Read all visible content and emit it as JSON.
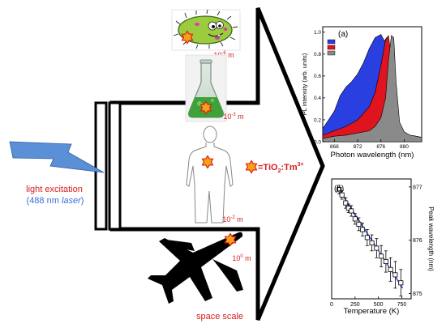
{
  "light": {
    "line1": "light excitation",
    "line2_open": "(488 nm ",
    "line2_laser": "laser",
    "line2_close": ")"
  },
  "scales": [
    {
      "base": "10",
      "exp": "-6",
      "unit": " m"
    },
    {
      "base": "10",
      "exp": "-3",
      "unit": " m"
    },
    {
      "base": "10",
      "exp": "-2",
      "unit": " m"
    },
    {
      "base": "10",
      "exp": "0",
      "unit": " m"
    }
  ],
  "space_scale": "space scale",
  "legend_formula": {
    "eq": "=TiO",
    "sub": "2",
    "colon": ":Tm",
    "sup": "3+"
  },
  "colors": {
    "text_red": "#d42020",
    "text_blue": "#3a6fd8",
    "lightning": "#5b8fd6",
    "star": "#f5a21b",
    "star_edge": "#e02010"
  },
  "chart_data": [
    {
      "panel": "(a)",
      "type": "area",
      "xlabel": "Photon wavelength (nm)",
      "ylabel": "PL intensity (arb. units)",
      "x_ticks": [
        868,
        872,
        876,
        880
      ],
      "y_ticks": [
        "0.0",
        "0.2",
        "0.4",
        "0.6",
        "0.8",
        "1.0"
      ],
      "xlim": [
        866,
        883
      ],
      "ylim": [
        0,
        1.05
      ],
      "legend_location": "top-left",
      "series": [
        {
          "name": "",
          "legend": "blue",
          "color": "#2a3fe0",
          "x": [
            866,
            867,
            868,
            869,
            870,
            871,
            872,
            873,
            874,
            875,
            876,
            876.6,
            877,
            877.5,
            878,
            879,
            880,
            881,
            882,
            883
          ],
          "y": [
            0.12,
            0.2,
            0.28,
            0.42,
            0.5,
            0.55,
            0.62,
            0.72,
            0.85,
            0.95,
            0.98,
            0.92,
            0.95,
            0.6,
            0.25,
            0.12,
            0.08,
            0.06,
            0.05,
            0.04
          ]
        },
        {
          "name": "",
          "legend": "red",
          "color": "#e0141e",
          "x": [
            866,
            868,
            870,
            872,
            873,
            874,
            875,
            876,
            876.8,
            877.3,
            877.8,
            878.3,
            879,
            880,
            881,
            882,
            883
          ],
          "y": [
            0.06,
            0.1,
            0.14,
            0.2,
            0.26,
            0.32,
            0.45,
            0.7,
            0.93,
            0.97,
            0.75,
            0.35,
            0.12,
            0.06,
            0.05,
            0.04,
            0.04
          ]
        },
        {
          "name": "",
          "legend": "gray",
          "color": "#8a8a8a",
          "x": [
            866,
            868,
            870,
            872,
            874,
            875,
            876,
            876.8,
            877.3,
            877.8,
            878.2,
            878.6,
            879.2,
            880,
            881,
            882,
            883
          ],
          "y": [
            0.03,
            0.05,
            0.06,
            0.08,
            0.1,
            0.14,
            0.22,
            0.4,
            0.75,
            0.97,
            0.95,
            0.55,
            0.18,
            0.09,
            0.06,
            0.05,
            0.04
          ]
        }
      ]
    },
    {
      "panel": "(b)",
      "type": "scatter",
      "xlabel": "Temperature (K)",
      "ylabel": "Peak wavelength (nm)",
      "x_ticks": [
        0,
        250,
        500,
        750
      ],
      "y_ticks": [
        875,
        876,
        877
      ],
      "xlim": [
        0,
        850
      ],
      "ylim": [
        874.9,
        877.15
      ],
      "points": [
        {
          "x": 80,
          "y": 876.95,
          "err": 0.08
        },
        {
          "x": 110,
          "y": 876.85,
          "err": 0.08
        },
        {
          "x": 150,
          "y": 876.7,
          "err": 0.1
        },
        {
          "x": 180,
          "y": 876.6,
          "err": 0.08
        },
        {
          "x": 210,
          "y": 876.55,
          "err": 0.1
        },
        {
          "x": 250,
          "y": 876.4,
          "err": 0.1
        },
        {
          "x": 290,
          "y": 876.3,
          "err": 0.12
        },
        {
          "x": 330,
          "y": 876.2,
          "err": 0.12
        },
        {
          "x": 380,
          "y": 876.05,
          "err": 0.15
        },
        {
          "x": 430,
          "y": 875.95,
          "err": 0.15
        },
        {
          "x": 480,
          "y": 875.85,
          "err": 0.18
        },
        {
          "x": 530,
          "y": 875.7,
          "err": 0.2
        },
        {
          "x": 580,
          "y": 875.6,
          "err": 0.2
        },
        {
          "x": 630,
          "y": 875.45,
          "err": 0.22
        },
        {
          "x": 680,
          "y": 875.35,
          "err": 0.25
        },
        {
          "x": 740,
          "y": 875.2,
          "err": 0.25
        }
      ],
      "fit": {
        "x": [
          60,
          760
        ],
        "y": [
          877.0,
          875.1
        ],
        "color": "#2a3fd0"
      }
    }
  ]
}
